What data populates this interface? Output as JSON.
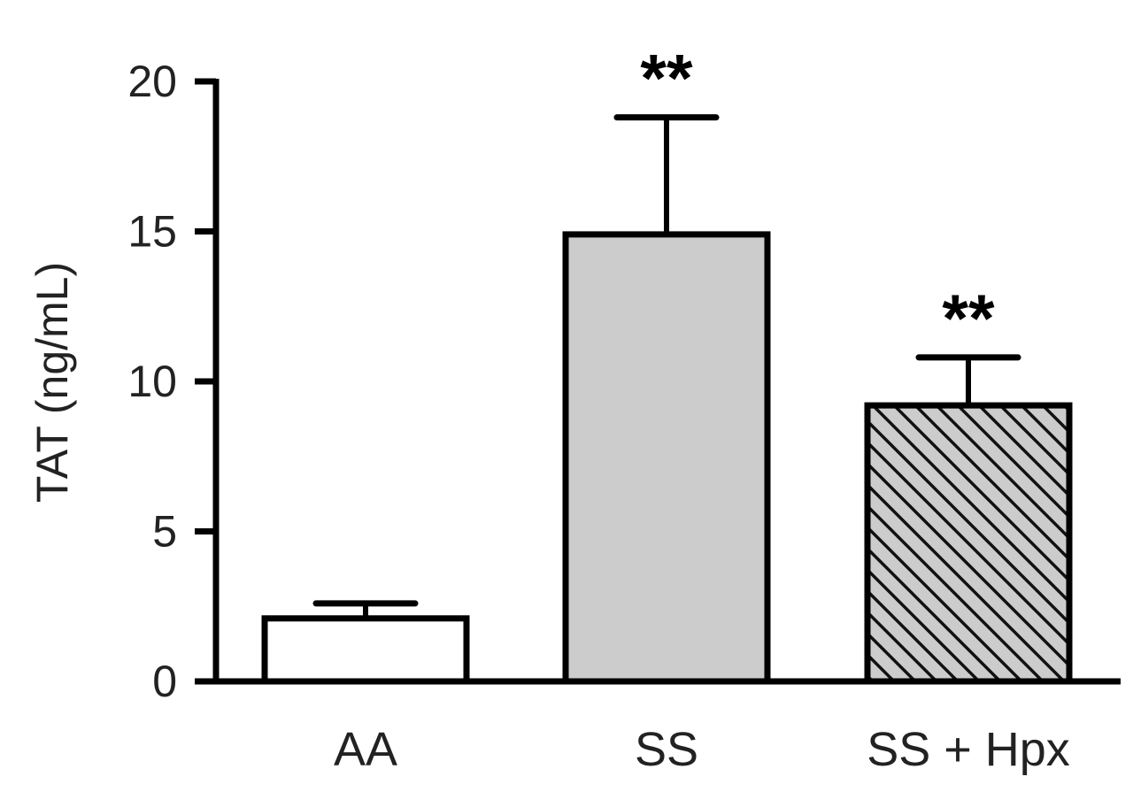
{
  "chart_data": {
    "type": "bar",
    "categories": [
      "AA",
      "SS",
      "SS + Hpx"
    ],
    "values": [
      2.1,
      14.9,
      9.2
    ],
    "errors": [
      0.5,
      3.9,
      1.6
    ],
    "significance": [
      "",
      "**",
      "**"
    ],
    "bar_fills": [
      "#ffffff",
      "#cccccc",
      "#cccccc"
    ],
    "bar_patterns": [
      "none",
      "none",
      "diagonal-hatch"
    ],
    "ylabel": "TAT (ng/mL)",
    "xlabel": "",
    "title": "",
    "ylim": [
      0,
      20
    ],
    "yticks": [
      0,
      5,
      10,
      15,
      20
    ],
    "grid": false,
    "legend": "none"
  }
}
